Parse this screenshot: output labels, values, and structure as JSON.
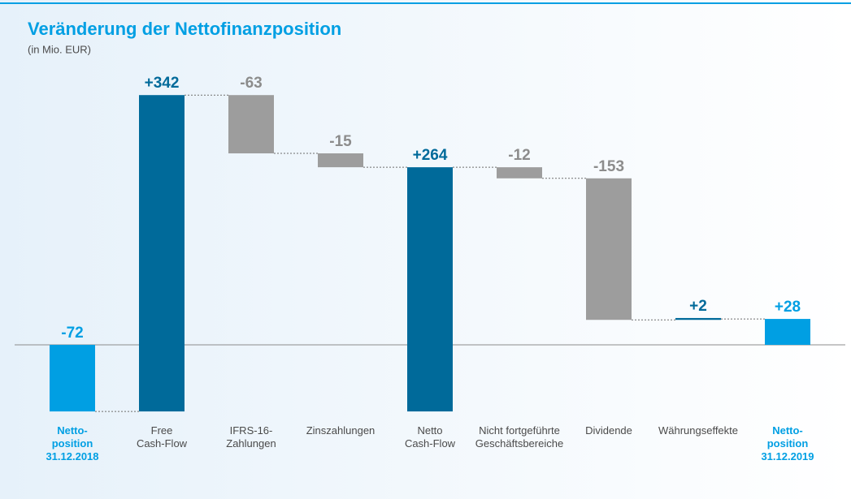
{
  "chart_data": {
    "type": "waterfall",
    "title": "Veränderung der Nettofinanzposition",
    "subtitle": "(in Mio. EUR)",
    "categories": [
      "Netto-\nposition\n31.12.2018",
      "Free\nCash-Flow",
      "IFRS-16-\nZahlungen",
      "Zinszahlungen",
      "Netto\nCash-Flow",
      "Nicht fortgeführte\nGeschäftsbereiche",
      "Dividende",
      "Währungseffekte",
      "Netto-\nposition\n31.12.2019"
    ],
    "measures": [
      "absolute",
      "relative",
      "relative",
      "relative",
      "subtotal",
      "relative",
      "relative",
      "relative",
      "total"
    ],
    "values": [
      -72,
      342,
      -63,
      -15,
      264,
      -12,
      -153,
      2,
      28
    ],
    "value_labels": [
      "-72",
      "+342",
      "-63",
      "-15",
      "+264",
      "-12",
      "-153",
      "+2",
      "+28"
    ],
    "colors": [
      "#009fe3",
      "#006a9a",
      "#9d9d9d",
      "#9d9d9d",
      "#006a9a",
      "#9d9d9d",
      "#9d9d9d",
      "#006a9a",
      "#009fe3"
    ],
    "ylim": [
      -100,
      350
    ]
  }
}
